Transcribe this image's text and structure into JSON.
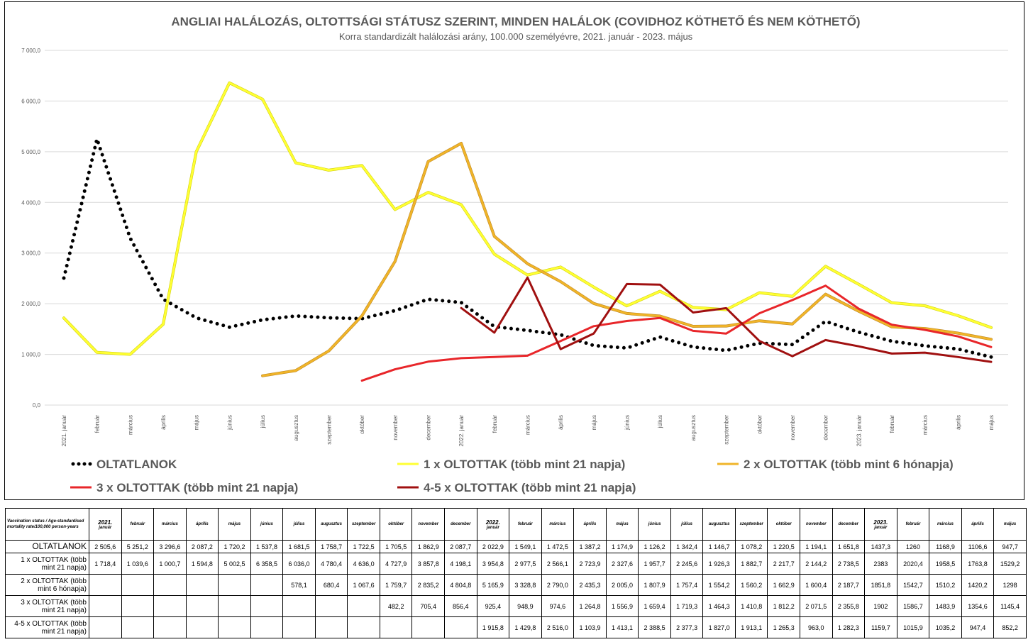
{
  "chart_data": {
    "type": "line",
    "title": "ANGLIAI HALÁLOZÁS, OLTOTTSÁGI STÁTUSZ SZERINT, MINDEN HALÁLOK (COVIDHOZ KÖTHETŐ ÉS NEM KÖTHETŐ)",
    "subtitle": "Korra standardizált halálozási arány, 100.000 személyévre, 2021. január - 2023. május",
    "ylim": [
      0,
      7000
    ],
    "yticks": [
      "0,0",
      "1 000,0",
      "2 000,0",
      "3 000,0",
      "4 000,0",
      "5 000,0",
      "6 000,0",
      "7 000,0"
    ],
    "grid": true,
    "legend_position": "bottom",
    "categories": [
      "2021. január",
      "február",
      "március",
      "április",
      "május",
      "június",
      "július",
      "augusztus",
      "szeptember",
      "október",
      "november",
      "december",
      "2022. január",
      "február",
      "március",
      "április",
      "május",
      "június",
      "július",
      "augusztus",
      "szeptember",
      "október",
      "november",
      "december",
      "2023. január",
      "február",
      "március",
      "április",
      "május"
    ],
    "series": [
      {
        "name": "OLTATLANOK",
        "color": "#000000",
        "style": "dotted",
        "values": [
          2505.6,
          5251.2,
          3296.6,
          2087.2,
          1720.2,
          1537.8,
          1681.5,
          1758.7,
          1722.5,
          1705.5,
          1862.9,
          2087.7,
          2022.9,
          1549.1,
          1472.5,
          1387.2,
          1174.9,
          1126.2,
          1342.4,
          1146.7,
          1078.2,
          1220.5,
          1194.1,
          1651.8,
          1437.3,
          1260,
          1168.9,
          1106.6,
          947.7
        ]
      },
      {
        "name": "1 x OLTOTTAK  (több mint 21 napja)",
        "color": "#FFFF33",
        "style": "solid",
        "values": [
          1718.4,
          1039.6,
          1000.7,
          1594.8,
          5002.5,
          6358.5,
          6036.0,
          4780.4,
          4636.0,
          4727.9,
          3857.8,
          4198.1,
          3954.8,
          2977.5,
          2566.1,
          2723.9,
          2327.6,
          1957.7,
          2245.6,
          1926.3,
          1882.7,
          2217.7,
          2144.2,
          2738.5,
          2383,
          2020.4,
          1958.5,
          1763.8,
          1529.2
        ]
      },
      {
        "name": "2 x OLTOTTAK (több mint 6 hónapja)",
        "color": "#F0B429",
        "style": "solid",
        "values": [
          null,
          null,
          null,
          null,
          null,
          null,
          578.1,
          680.4,
          1067.6,
          1759.7,
          2835.2,
          4804.8,
          5165.9,
          3328.8,
          2790.0,
          2435.3,
          2005.0,
          1807.9,
          1757.4,
          1554.2,
          1560.2,
          1662.9,
          1600.4,
          2187.7,
          1851.8,
          1542.7,
          1510.2,
          1420.2,
          1298
        ]
      },
      {
        "name": "3 x OLTOTTAK (több mint 21 napja)",
        "color": "#E8262A",
        "style": "solid",
        "values": [
          null,
          null,
          null,
          null,
          null,
          null,
          null,
          null,
          null,
          482.2,
          705.4,
          856.4,
          925.4,
          948.9,
          974.6,
          1264.8,
          1556.9,
          1659.4,
          1719.3,
          1464.3,
          1410.8,
          1812.2,
          2071.5,
          2355.8,
          1902,
          1586.7,
          1483.9,
          1354.6,
          1145.4
        ]
      },
      {
        "name": "4-5 x OLTOTTAK (több mint 21 napja)",
        "color": "#A01010",
        "style": "solid",
        "values": [
          null,
          null,
          null,
          null,
          null,
          null,
          null,
          null,
          null,
          null,
          null,
          null,
          1915.8,
          1429.8,
          2516.0,
          1103.9,
          1413.1,
          2388.5,
          2377.3,
          1827.0,
          1913.1,
          1265.3,
          963.0,
          1282.3,
          1159.7,
          1015.9,
          1035.2,
          947.4,
          852.2
        ]
      }
    ]
  },
  "table": {
    "corner_label": "Vaccination status / Age-standardised mortality rate/100,000 person-years",
    "headers": [
      {
        "label": "2021.",
        "sub": "január",
        "major": true
      },
      {
        "label": "február"
      },
      {
        "label": "március"
      },
      {
        "label": "április"
      },
      {
        "label": "május"
      },
      {
        "label": "június"
      },
      {
        "label": "július"
      },
      {
        "label": "augusztus"
      },
      {
        "label": "szeptember"
      },
      {
        "label": "október"
      },
      {
        "label": "november"
      },
      {
        "label": "december"
      },
      {
        "label": "2022.",
        "sub": "január",
        "major": true
      },
      {
        "label": "február"
      },
      {
        "label": "március"
      },
      {
        "label": "április"
      },
      {
        "label": "május"
      },
      {
        "label": "június"
      },
      {
        "label": "július"
      },
      {
        "label": "augusztus"
      },
      {
        "label": "szeptember"
      },
      {
        "label": "október"
      },
      {
        "label": "november"
      },
      {
        "label": "december"
      },
      {
        "label": "2023.",
        "sub": "január",
        "major": true
      },
      {
        "label": "február"
      },
      {
        "label": "március"
      },
      {
        "label": "április"
      },
      {
        "label": "május"
      }
    ],
    "rows": [
      {
        "label": "OLTATLANOK",
        "cells": [
          "2 505,6",
          "5 251,2",
          "3 296,6",
          "2 087,2",
          "1 720,2",
          "1 537,8",
          "1 681,5",
          "1 758,7",
          "1 722,5",
          "1 705,5",
          "1 862,9",
          "2 087,7",
          "2 022,9",
          "1 549,1",
          "1 472,5",
          "1 387,2",
          "1 174,9",
          "1 126,2",
          "1 342,4",
          "1 146,7",
          "1 078,2",
          "1 220,5",
          "1 194,1",
          "1 651,8",
          "1437,3",
          "1260",
          "1168,9",
          "1106,6",
          "947,7"
        ]
      },
      {
        "label": "1 x OLTOTTAK  (több mint 21 napja)",
        "cells": [
          "1 718,4",
          "1 039,6",
          "1 000,7",
          "1 594,8",
          "5 002,5",
          "6 358,5",
          "6 036,0",
          "4 780,4",
          "4 636,0",
          "4 727,9",
          "3 857,8",
          "4 198,1",
          "3 954,8",
          "2 977,5",
          "2 566,1",
          "2 723,9",
          "2 327,6",
          "1 957,7",
          "2 245,6",
          "1 926,3",
          "1 882,7",
          "2 217,7",
          "2 144,2",
          "2 738,5",
          "2383",
          "2020,4",
          "1958,5",
          "1763,8",
          "1529,2"
        ]
      },
      {
        "label": "2 x OLTOTTAK (több mint 6 hónapja)",
        "cells": [
          "",
          "",
          "",
          "",
          "",
          "",
          "578,1",
          "680,4",
          "1 067,6",
          "1 759,7",
          "2 835,2",
          "4 804,8",
          "5 165,9",
          "3 328,8",
          "2 790,0",
          "2 435,3",
          "2 005,0",
          "1 807,9",
          "1 757,4",
          "1 554,2",
          "1 560,2",
          "1 662,9",
          "1 600,4",
          "2 187,7",
          "1851,8",
          "1542,7",
          "1510,2",
          "1420,2",
          "1298"
        ]
      },
      {
        "label": "3 x OLTOTTAK (több mint 21 napja)",
        "cells": [
          "",
          "",
          "",
          "",
          "",
          "",
          "",
          "",
          "",
          "482,2",
          "705,4",
          "856,4",
          "925,4",
          "948,9",
          "974,6",
          "1 264,8",
          "1 556,9",
          "1 659,4",
          "1 719,3",
          "1 464,3",
          "1 410,8",
          "1 812,2",
          "2 071,5",
          "2 355,8",
          "1902",
          "1586,7",
          "1483,9",
          "1354,6",
          "1145,4"
        ]
      },
      {
        "label": "4-5 x OLTOTTAK (több mint 21 napja)",
        "cells": [
          "",
          "",
          "",
          "",
          "",
          "",
          "",
          "",
          "",
          "",
          "",
          "",
          "1 915,8",
          "1 429,8",
          "2 516,0",
          "1 103,9",
          "1 413,1",
          "2 388,5",
          "2 377,3",
          "1 827,0",
          "1 913,1",
          "1 265,3",
          "963,0",
          "1 282,3",
          "1159,7",
          "1015,9",
          "1035,2",
          "947,4",
          "852,2"
        ]
      }
    ]
  }
}
